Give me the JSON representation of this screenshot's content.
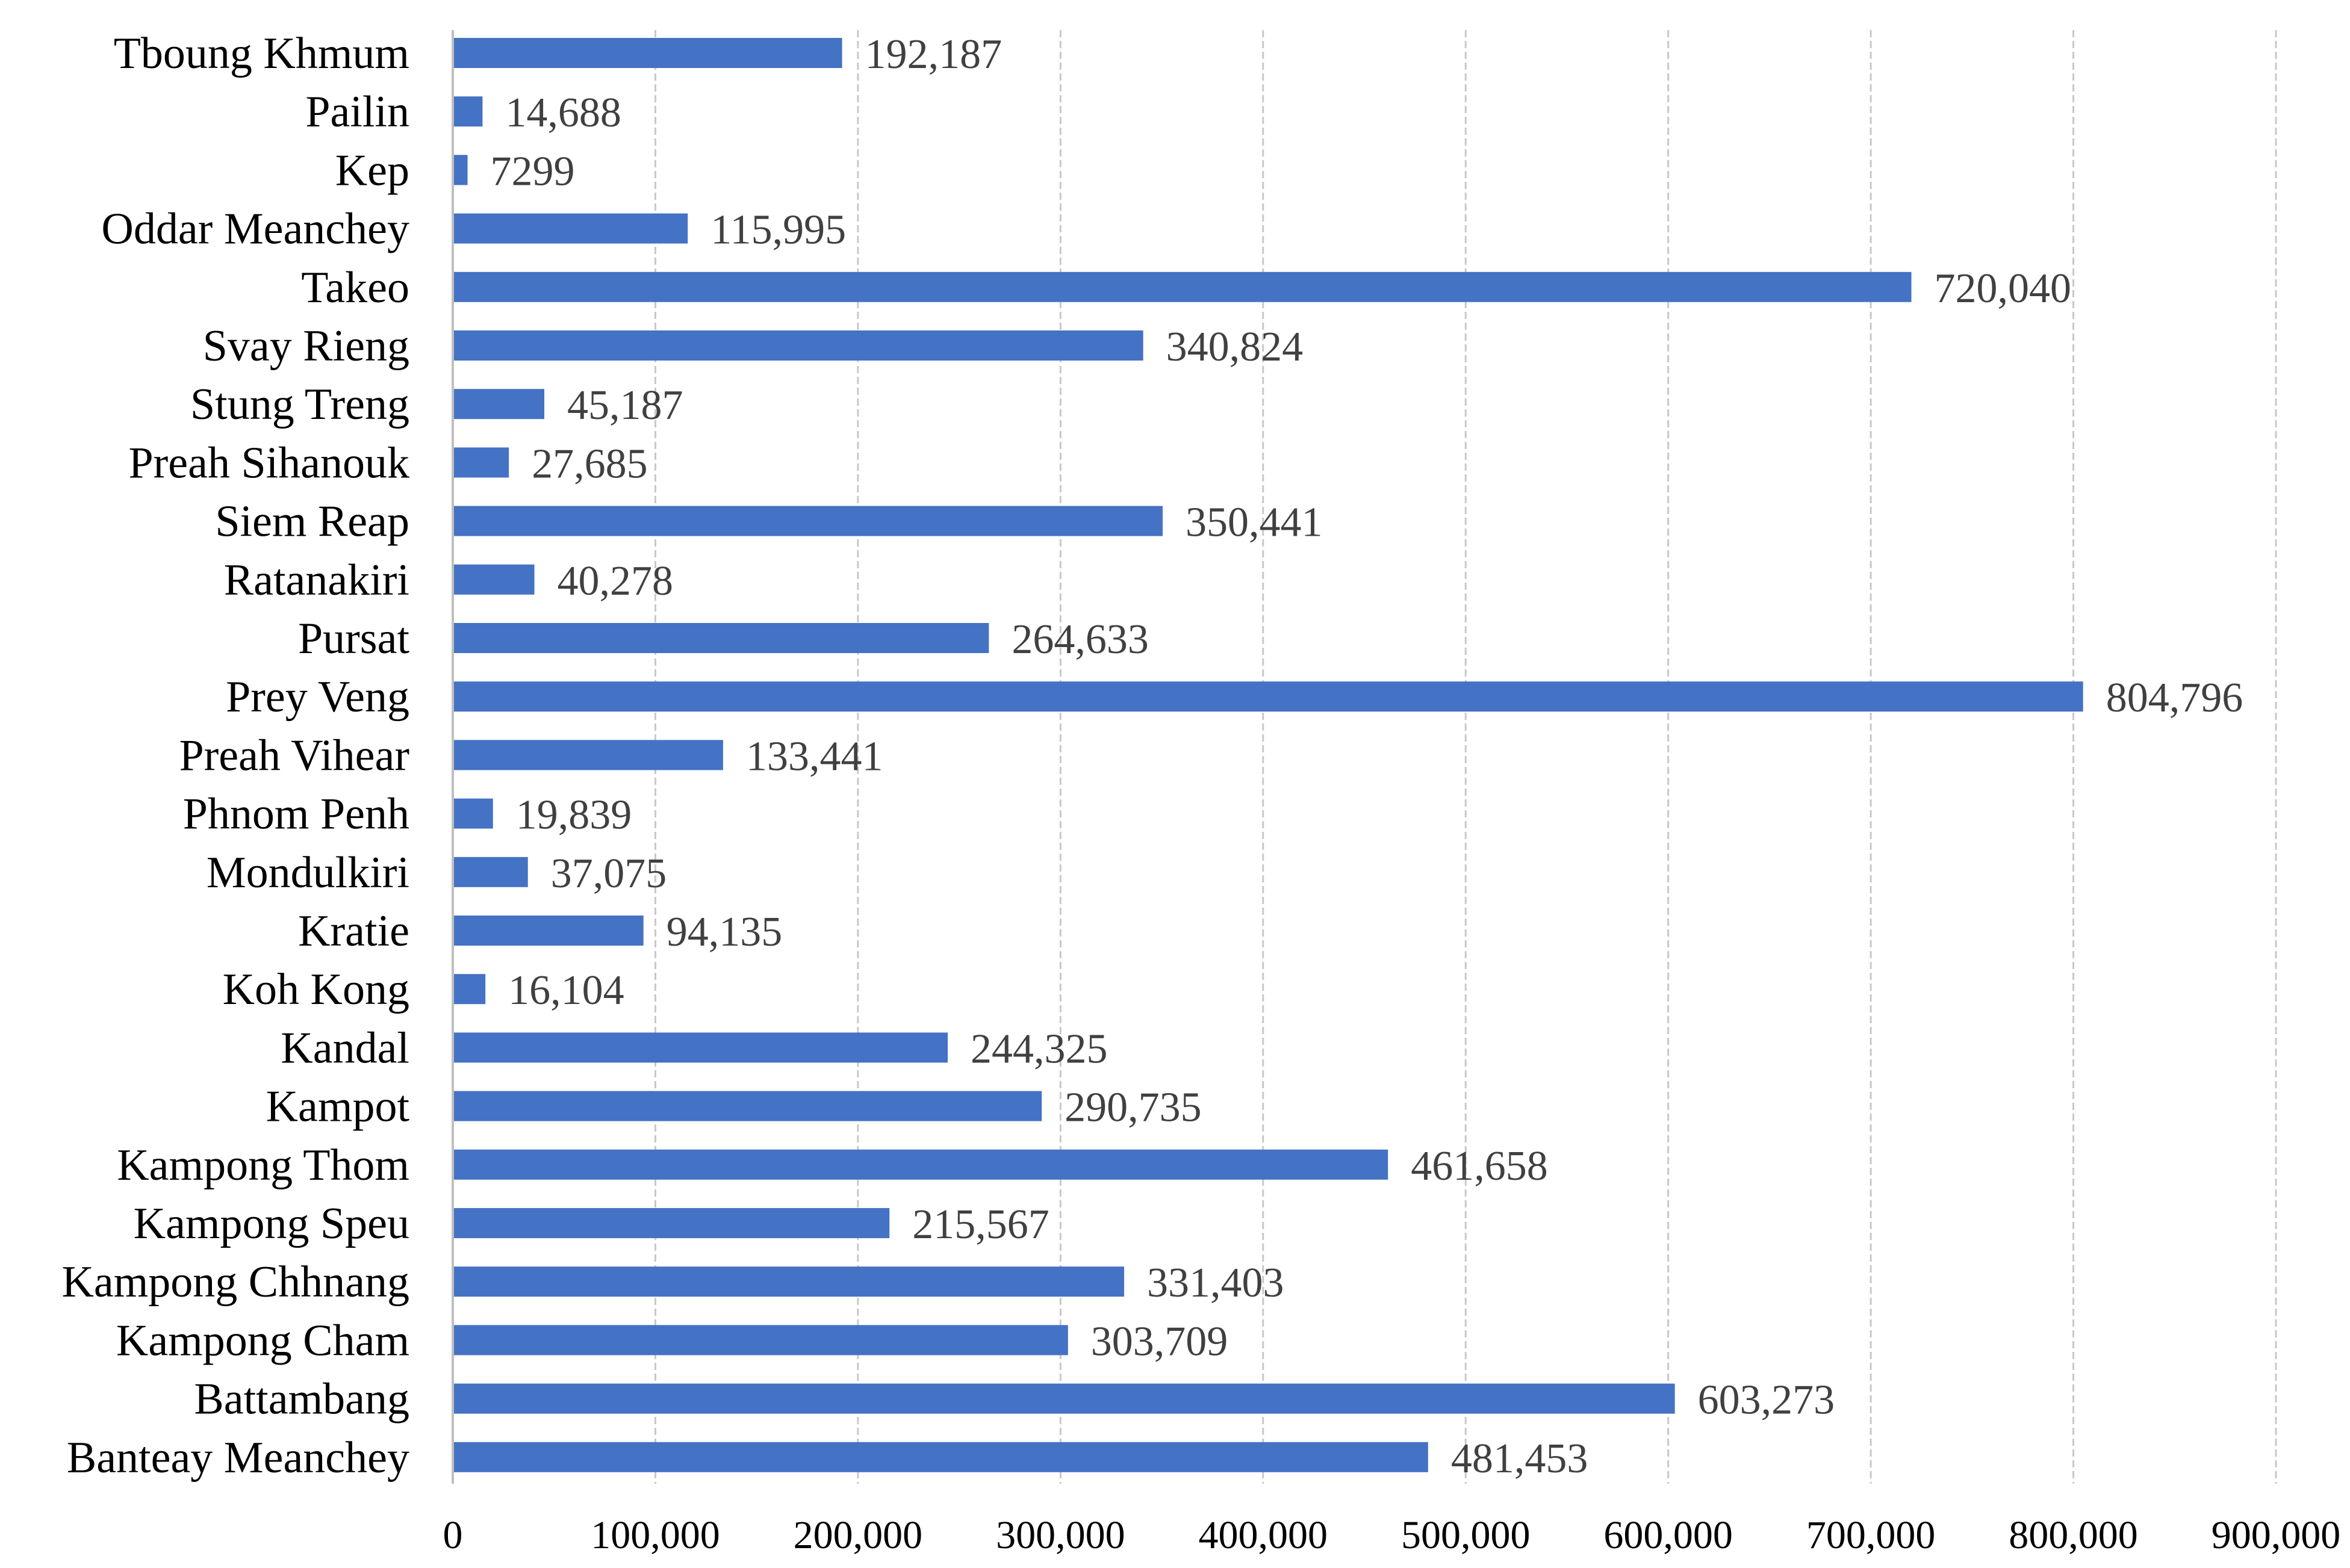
{
  "chart_data": {
    "type": "bar",
    "orientation": "horizontal",
    "title": "",
    "xlabel": "",
    "ylabel": "",
    "xlim": [
      0,
      900000
    ],
    "x_ticks": [
      0,
      100000,
      200000,
      300000,
      400000,
      500000,
      600000,
      700000,
      800000,
      900000
    ],
    "x_tick_labels": [
      "0",
      "100,000",
      "200,000",
      "300,000",
      "400,000",
      "500,000",
      "600,000",
      "700,000",
      "800,000",
      "900,000"
    ],
    "grid": true,
    "legend": "none",
    "bar_color": "#4472c4",
    "categories": [
      "Tboung Khmum",
      "Pailin",
      "Kep",
      "Oddar Meanchey",
      "Takeo",
      "Svay Rieng",
      "Stung Treng",
      "Preah Sihanouk",
      "Siem Reap",
      "Ratanakiri",
      "Pursat",
      "Prey Veng",
      "Preah Vihear",
      "Phnom Penh",
      "Mondulkiri",
      "Kratie",
      "Koh Kong",
      "Kandal",
      "Kampot",
      "Kampong Thom",
      "Kampong Speu",
      "Kampong Chhnang",
      "Kampong Cham",
      "Battambang",
      "Banteay Meanchey"
    ],
    "values": [
      192187,
      14688,
      7299,
      115995,
      720040,
      340824,
      45187,
      27685,
      350441,
      40278,
      264633,
      804796,
      133441,
      19839,
      37075,
      94135,
      16104,
      244325,
      290735,
      461658,
      215567,
      331403,
      303709,
      603273,
      481453
    ],
    "value_labels": [
      "192,187",
      "14,688",
      "7299",
      "115,995",
      "720,040",
      "340,824",
      "45,187",
      "27,685",
      "350,441",
      "40,278",
      "264,633",
      "804,796",
      "133,441",
      "19,839",
      "37,075",
      "94,135",
      "16,104",
      "244,325",
      "290,735",
      "461,658",
      "215,567",
      "331,403",
      "303,709",
      "603,273",
      "481,453"
    ]
  }
}
